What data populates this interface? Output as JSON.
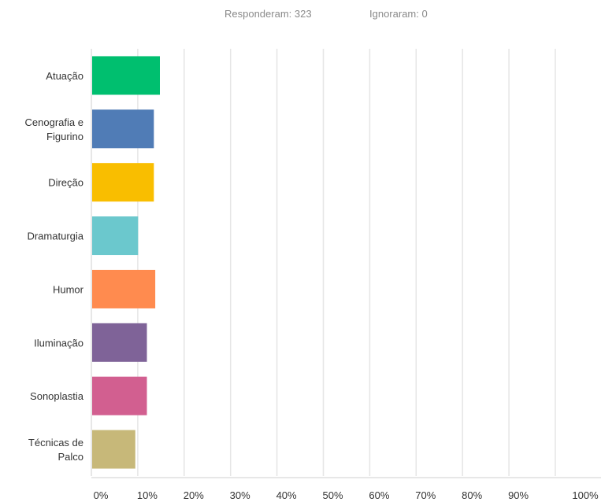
{
  "summary": {
    "answered_label": "Responderam: 323",
    "skipped_label": "Ignoraram: 0"
  },
  "chart_data": {
    "type": "bar",
    "orientation": "horizontal",
    "categories": [
      [
        "Atuação"
      ],
      [
        "Cenografia e",
        "Figurino"
      ],
      [
        "Direção"
      ],
      [
        "Dramaturgia"
      ],
      [
        "Humor"
      ],
      [
        "Iluminação"
      ],
      [
        "Sonoplastia"
      ],
      [
        "Técnicas de",
        "Palco"
      ]
    ],
    "values": [
      14.6,
      13.3,
      13.3,
      9.9,
      13.6,
      11.8,
      11.8,
      9.3
    ],
    "colors": [
      "#00bf6f",
      "#507cb6",
      "#f9be00",
      "#6bc8cd",
      "#ff8b4f",
      "#7f6398",
      "#d25f90",
      "#c7b879"
    ],
    "xlim": [
      0,
      100
    ],
    "x_ticks": [
      "0%",
      "10%",
      "20%",
      "30%",
      "40%",
      "50%",
      "60%",
      "70%",
      "80%",
      "90%",
      "100%"
    ],
    "grid": true,
    "title": "",
    "xlabel": "",
    "ylabel": ""
  }
}
